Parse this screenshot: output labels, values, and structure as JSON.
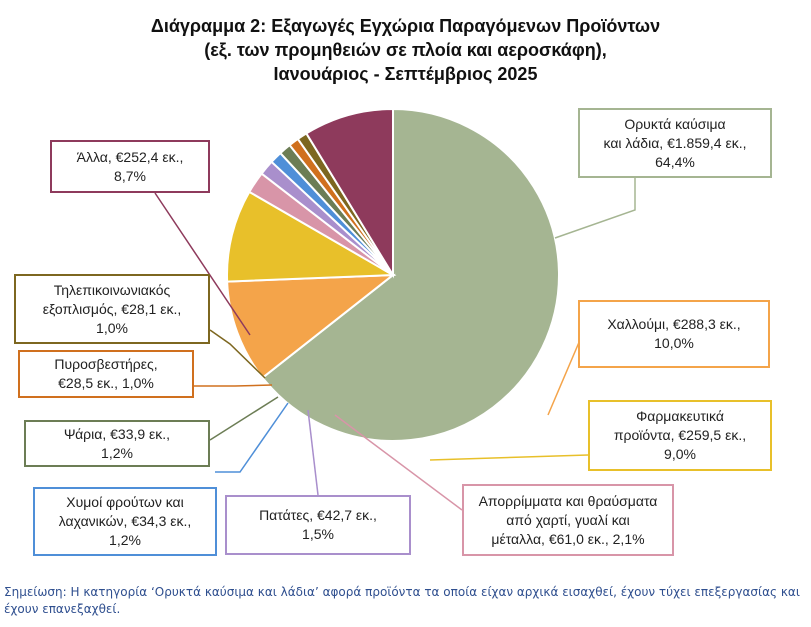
{
  "chart_data": {
    "type": "pie",
    "title": [
      "Διάγραμμα 2: Εξαγωγές Εγχώρια Παραγόμενων Προϊόντων",
      "(εξ. των προμηθειών σε πλοία και αεροσκάφη),",
      "Ιανουάριος - Σεπτέμβριος 2025"
    ],
    "slices": [
      {
        "name": "Ορυκτά καύσιμα και λάδια",
        "value": 1859.4,
        "percent": 64.4,
        "color": "#a5b592",
        "label_lines": [
          "Ορυκτά καύσιμα",
          "και λάδια, €1.859,4 εκ.,",
          "64,4%"
        ]
      },
      {
        "name": "Χαλλούμι",
        "value": 288.3,
        "percent": 10.0,
        "color": "#f4a44a",
        "label_lines": [
          "Χαλλούμι, €288,3 εκ.,",
          "10,0%"
        ]
      },
      {
        "name": "Φαρμακευτικά προϊόντα",
        "value": 259.5,
        "percent": 9.0,
        "color": "#e8c02a",
        "label_lines": [
          "Φαρμακευτικά",
          "προϊόντα, €259,5 εκ.,",
          "9,0%"
        ]
      },
      {
        "name": "Απορρίμματα και θραύσματα από χαρτί, γυαλί και μέταλλα",
        "value": 61.0,
        "percent": 2.1,
        "color": "#d895a8",
        "label_lines": [
          "Απορρίμματα και θραύσματα",
          "από χαρτί, γυαλί και",
          "μέταλλα, €61,0 εκ., 2,1%"
        ]
      },
      {
        "name": "Πατάτες",
        "value": 42.7,
        "percent": 1.5,
        "color": "#a98fcc",
        "label_lines": [
          "Πατάτες, €42,7 εκ.,",
          "1,5%"
        ]
      },
      {
        "name": "Χυμοί φρούτων και λαχανικών",
        "value": 34.3,
        "percent": 1.2,
        "color": "#4f8fd8",
        "label_lines": [
          "Χυμοί φρούτων και",
          "λαχανικών, €34,3 εκ.,",
          "1,2%"
        ]
      },
      {
        "name": "Ψάρια",
        "value": 33.9,
        "percent": 1.2,
        "color": "#6c7d55",
        "label_lines": [
          "Ψάρια, €33,9 εκ.,",
          "1,2%"
        ]
      },
      {
        "name": "Πυροσβεστήρες",
        "value": 28.5,
        "percent": 1.0,
        "color": "#d0701e",
        "label_lines": [
          "Πυροσβεστήρες,",
          "€28,5 εκ., 1,0%"
        ]
      },
      {
        "name": "Τηλεπικοινωνιακός εξοπλισμός",
        "value": 28.1,
        "percent": 1.0,
        "color": "#7d6720",
        "label_lines": [
          "Τηλεπικοινωνιακός",
          "εξοπλισμός, €28,1 εκ.,",
          "1,0%"
        ]
      },
      {
        "name": "Άλλα",
        "value": 252.4,
        "percent": 8.7,
        "color": "#8e3a5c",
        "label_lines": [
          "Άλλα, €252,4 εκ.,",
          "8,7%"
        ]
      }
    ]
  },
  "note": "Σημείωση: Η κατηγορία ‘Ορυκτά καύσιμα και λάδια’ αφορά προϊόντα τα οποία είχαν αρχικά εισαχθεί, έχουν τύχει επεξεργασίας και έχουν επανεξαχθεί."
}
